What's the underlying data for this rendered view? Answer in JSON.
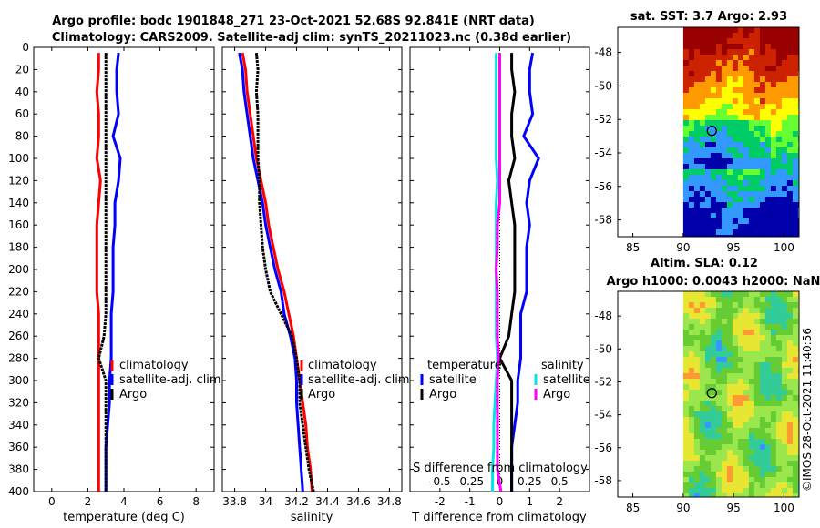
{
  "chart_data": [
    {
      "type": "line",
      "title_line1": "Argo profile: bodc 1901848_271 23-Oct-2021 52.68S 92.841E (NRT data)",
      "title_line2": "Climatology: CARS2009. Satellite-adj clim: synTS_20211023.nc (0.38d earlier)",
      "xlabel": "temperature (deg C)",
      "xlim": [
        -1,
        9
      ],
      "ylim": [
        0,
        400
      ],
      "xticks": [
        "0",
        "2",
        "4",
        "6",
        "8"
      ],
      "yticks": [
        "0",
        "20",
        "40",
        "60",
        "80",
        "100",
        "120",
        "140",
        "160",
        "180",
        "200",
        "220",
        "240",
        "260",
        "280",
        "300",
        "320",
        "340",
        "360",
        "380",
        "400"
      ],
      "depth": [
        5,
        20,
        40,
        60,
        80,
        100,
        120,
        140,
        160,
        180,
        200,
        220,
        240,
        260,
        280,
        300,
        320,
        340,
        360,
        380,
        400
      ],
      "legend": [
        "climatology",
        "satellite-adj. clim",
        "Argo"
      ],
      "series": [
        {
          "name": "climatology",
          "color": "#ff0000",
          "values": [
            2.6,
            2.6,
            2.5,
            2.6,
            2.6,
            2.5,
            2.7,
            2.6,
            2.5,
            2.5,
            2.5,
            2.5,
            2.6,
            2.6,
            2.6,
            2.6,
            2.6,
            2.6,
            2.6,
            2.6,
            2.6
          ]
        },
        {
          "name": "satellite-adj. clim",
          "color": "#0000ff",
          "values": [
            3.7,
            3.6,
            3.6,
            3.7,
            3.4,
            3.8,
            3.7,
            3.5,
            3.5,
            3.4,
            3.4,
            3.4,
            3.3,
            3.3,
            3.3,
            3.2,
            3.2,
            3.1,
            3.0,
            3.0,
            3.0
          ]
        },
        {
          "name": "Argo",
          "color": "#000000",
          "values": [
            3.0,
            3.0,
            3.0,
            3.0,
            3.0,
            3.0,
            3.0,
            3.0,
            3.0,
            3.0,
            3.0,
            3.0,
            3.0,
            2.9,
            2.6,
            3.0,
            3.0,
            3.0,
            3.0,
            3.0,
            3.0
          ]
        }
      ]
    },
    {
      "type": "line",
      "xlabel": "salinity",
      "xlim": [
        33.72,
        34.88
      ],
      "ylim": [
        0,
        400
      ],
      "xticks": [
        "33.8",
        "34",
        "34.2",
        "34.4",
        "34.6",
        "34.8"
      ],
      "depth": [
        5,
        20,
        40,
        60,
        80,
        100,
        120,
        140,
        160,
        180,
        200,
        220,
        240,
        260,
        280,
        300,
        320,
        340,
        360,
        380,
        400
      ],
      "legend": [
        "climatology",
        "satellite-adj. clim",
        "Argo"
      ],
      "series": [
        {
          "name": "climatology",
          "color": "#ff0000",
          "values": [
            33.85,
            33.87,
            33.88,
            33.9,
            33.92,
            33.94,
            33.97,
            34.0,
            34.02,
            34.05,
            34.08,
            34.12,
            34.15,
            34.18,
            34.2,
            34.22,
            34.24,
            34.26,
            34.27,
            34.29,
            34.3
          ]
        },
        {
          "name": "satellite-adj. clim",
          "color": "#0000ff",
          "values": [
            33.83,
            33.85,
            33.86,
            33.88,
            33.9,
            33.92,
            33.95,
            33.98,
            34.0,
            34.03,
            34.06,
            34.1,
            34.12,
            34.16,
            34.19,
            34.2,
            34.2,
            34.21,
            34.22,
            34.23,
            34.24
          ]
        },
        {
          "name": "Argo",
          "color": "#000000",
          "values": [
            33.94,
            33.95,
            33.94,
            33.95,
            33.95,
            33.95,
            33.96,
            33.96,
            33.97,
            33.98,
            34.0,
            34.03,
            34.1,
            34.17,
            34.2,
            34.22,
            34.22,
            34.24,
            34.26,
            34.28,
            34.31
          ]
        }
      ]
    },
    {
      "type": "line",
      "xlabel": "T difference from climatology",
      "xlim": [
        -3,
        3
      ],
      "ylim": [
        0,
        400
      ],
      "xticks": [
        "-2",
        "-1",
        "0",
        "1",
        "2"
      ],
      "top_axis_label": "S difference from climatology",
      "top_xticks": [
        "-0.5",
        "-0.25",
        "0",
        "0.25",
        "0.5"
      ],
      "legend_titles": [
        "temperature",
        "salinity"
      ],
      "legend": [
        "satellite",
        "Argo",
        "satellite",
        "Argo"
      ],
      "depth": [
        5,
        20,
        40,
        60,
        80,
        100,
        120,
        140,
        160,
        180,
        200,
        220,
        240,
        260,
        280,
        300,
        320,
        340,
        360,
        380,
        400
      ],
      "series": [
        {
          "name": "temperature satellite",
          "color": "#0000ff",
          "axis": "T",
          "values": [
            1.1,
            1.0,
            1.0,
            1.1,
            0.8,
            1.3,
            1.0,
            0.9,
            1.0,
            0.9,
            0.9,
            0.9,
            0.7,
            0.7,
            0.7,
            0.6,
            0.6,
            0.5,
            0.4,
            0.4,
            0.4
          ]
        },
        {
          "name": "temperature Argo",
          "color": "#000000",
          "axis": "T",
          "values": [
            0.4,
            0.4,
            0.5,
            0.4,
            0.4,
            0.5,
            0.3,
            0.4,
            0.5,
            0.5,
            0.5,
            0.5,
            0.4,
            0.3,
            0.0,
            0.4,
            0.4,
            0.4,
            0.4,
            0.4,
            0.4
          ]
        },
        {
          "name": "salinity satellite",
          "color": "#00e5e5",
          "axis": "S",
          "values": [
            -0.03,
            -0.03,
            -0.03,
            -0.03,
            -0.03,
            -0.03,
            -0.02,
            -0.03,
            -0.03,
            -0.03,
            -0.03,
            -0.03,
            -0.03,
            -0.03,
            -0.02,
            -0.03,
            -0.04,
            -0.05,
            -0.05,
            -0.06,
            -0.06
          ]
        },
        {
          "name": "salinity Argo",
          "color": "#ff00ff",
          "axis": "S",
          "values": [
            0.0,
            0.0,
            0.0,
            0.0,
            0.0,
            0.0,
            0.0,
            0.0,
            -0.02,
            -0.02,
            -0.03,
            -0.02,
            -0.02,
            -0.02,
            -0.01,
            -0.02,
            -0.02,
            -0.02,
            -0.02,
            -0.02,
            0.01
          ]
        }
      ]
    },
    {
      "type": "heatmap",
      "title": "sat. SST: 3.7 Argo: 2.93",
      "xlim": [
        83.5,
        101.5
      ],
      "ylim": [
        -59,
        -46.5
      ],
      "xticks": [
        "85",
        "90",
        "95",
        "100"
      ],
      "yticks": [
        "-48",
        "-50",
        "-52",
        "-54",
        "-56",
        "-58"
      ],
      "data_lon_start": 90,
      "argo_position": {
        "lon": 92.841,
        "lat": -52.68
      },
      "colors": [
        "#0000aa",
        "#3399ff",
        "#00cc66",
        "#66ff33",
        "#ffff00",
        "#ff9900",
        "#cc2200",
        "#990000"
      ]
    },
    {
      "type": "heatmap",
      "title_line1": "Altim. SLA: 0.12",
      "title_line2": "Argo h1000: 0.0043 h2000: NaN",
      "xlim": [
        83.5,
        101.5
      ],
      "ylim": [
        -59,
        -46.5
      ],
      "xticks": [
        "85",
        "90",
        "95",
        "100"
      ],
      "yticks": [
        "-48",
        "-50",
        "-52",
        "-54",
        "-56",
        "-58"
      ],
      "data_lon_start": 90,
      "argo_position": {
        "lon": 92.841,
        "lat": -52.68
      },
      "colors": [
        "#3399ff",
        "#33cc99",
        "#66cc33",
        "#99e64d",
        "#e6e633",
        "#ff9933"
      ]
    }
  ],
  "watermark": "©IMOS 28-Oct-2021 11:40:56"
}
